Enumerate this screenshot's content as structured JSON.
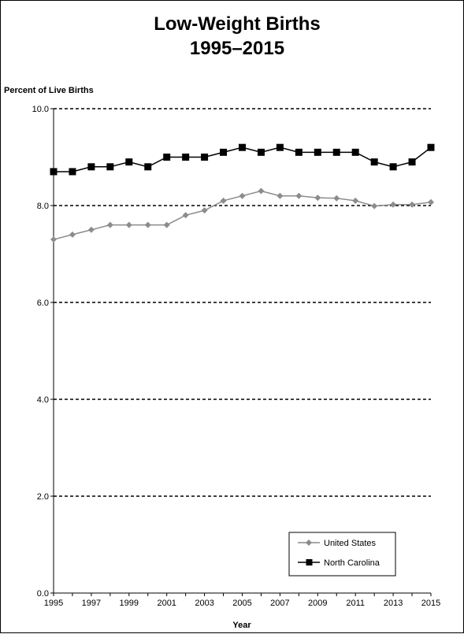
{
  "chart_data": {
    "type": "line",
    "title": "Low-Weight Births",
    "subtitle": "1995–2015",
    "ylabel": "Percent of Live Births",
    "xlabel": "Year",
    "ylim": [
      0,
      10
    ],
    "xlim": [
      1995,
      2015
    ],
    "y_ticks": [
      "0.0",
      "2.0",
      "4.0",
      "6.0",
      "8.0",
      "10.0"
    ],
    "x_tick_labels": [
      "1995",
      "1997",
      "1999",
      "2001",
      "2003",
      "2005",
      "2007",
      "2009",
      "2011",
      "2013",
      "2015"
    ],
    "grid": "horizontal dashed",
    "legend_placement": "bottom-right",
    "x": [
      1995,
      1996,
      1997,
      1998,
      1999,
      2000,
      2001,
      2002,
      2003,
      2004,
      2005,
      2006,
      2007,
      2008,
      2009,
      2010,
      2011,
      2012,
      2013,
      2014,
      2015
    ],
    "series": [
      {
        "name": "United States",
        "color": "#8c8c8c",
        "marker": "diamond",
        "values": [
          7.3,
          7.4,
          7.5,
          7.6,
          7.6,
          7.6,
          7.6,
          7.8,
          7.9,
          8.1,
          8.2,
          8.3,
          8.2,
          8.2,
          8.16,
          8.15,
          8.1,
          7.99,
          8.02,
          8.02,
          8.07
        ]
      },
      {
        "name": "North Carolina",
        "color": "#000000",
        "marker": "square",
        "values": [
          8.7,
          8.7,
          8.8,
          8.8,
          8.9,
          8.8,
          9.0,
          9.0,
          9.0,
          9.1,
          9.2,
          9.1,
          9.2,
          9.1,
          9.1,
          9.1,
          9.1,
          8.9,
          8.8,
          8.9,
          9.2
        ]
      }
    ]
  }
}
